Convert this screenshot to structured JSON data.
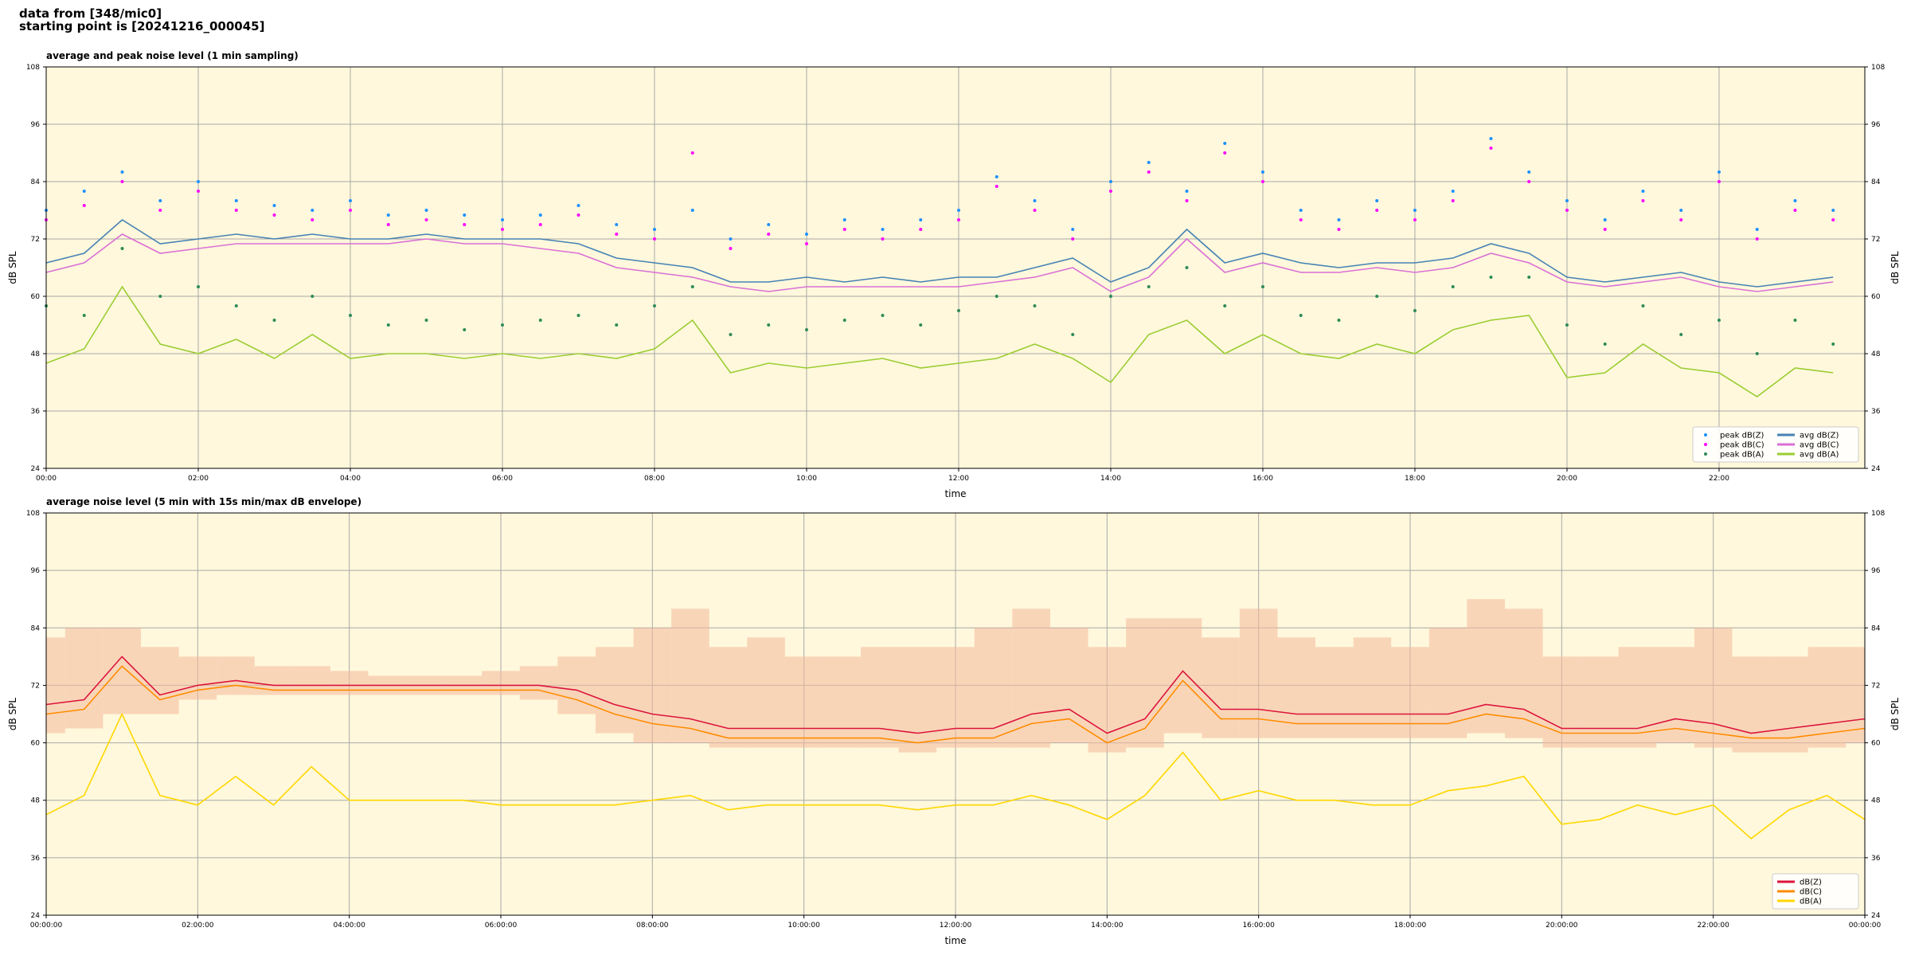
{
  "header": {
    "source": "data from [348/mic0]",
    "start": "starting point is [20241216_000045]"
  },
  "chart_data": [
    {
      "type": "line",
      "title": "average and peak noise level (1 min sampling)",
      "xlabel": "time",
      "ylabel": "dB SPL",
      "xlim": [
        0,
        1435
      ],
      "ylim": [
        24,
        108
      ],
      "yticks": [
        24,
        36,
        48,
        60,
        72,
        84,
        96,
        108
      ],
      "xticks": [
        {
          "value": 0,
          "label": "00:00"
        },
        {
          "value": 120,
          "label": "02:00"
        },
        {
          "value": 240,
          "label": "04:00"
        },
        {
          "value": 360,
          "label": "06:00"
        },
        {
          "value": 480,
          "label": "08:00"
        },
        {
          "value": 600,
          "label": "10:00"
        },
        {
          "value": 720,
          "label": "12:00"
        },
        {
          "value": 840,
          "label": "14:00"
        },
        {
          "value": 960,
          "label": "16:00"
        },
        {
          "value": 1080,
          "label": "18:00"
        },
        {
          "value": 1200,
          "label": "20:00"
        },
        {
          "value": 1320,
          "label": "22:00"
        }
      ],
      "grid": true,
      "legend": "lower right",
      "background": "#fff8dc",
      "x": [
        0,
        30,
        60,
        90,
        120,
        150,
        180,
        210,
        240,
        270,
        300,
        330,
        360,
        390,
        420,
        450,
        480,
        510,
        540,
        570,
        600,
        630,
        660,
        690,
        720,
        750,
        780,
        810,
        840,
        870,
        900,
        930,
        960,
        990,
        1020,
        1050,
        1080,
        1110,
        1140,
        1170,
        1200,
        1230,
        1260,
        1290,
        1320,
        1350,
        1380,
        1410
      ],
      "series": [
        {
          "name": "peak dB(Z)",
          "kind": "scatter",
          "color": "#1e90ff",
          "values": [
            78,
            82,
            86,
            80,
            84,
            80,
            79,
            78,
            80,
            77,
            78,
            77,
            76,
            77,
            79,
            75,
            74,
            78,
            72,
            75,
            73,
            76,
            74,
            76,
            78,
            85,
            80,
            74,
            84,
            88,
            82,
            92,
            86,
            78,
            76,
            80,
            78,
            82,
            93,
            86,
            80,
            76,
            82,
            78,
            86,
            74,
            80,
            78
          ]
        },
        {
          "name": "peak dB(C)",
          "kind": "scatter",
          "color": "#ff00ff",
          "values": [
            76,
            79,
            84,
            78,
            82,
            78,
            77,
            76,
            78,
            75,
            76,
            75,
            74,
            75,
            77,
            73,
            72,
            90,
            70,
            73,
            71,
            74,
            72,
            74,
            76,
            83,
            78,
            72,
            82,
            86,
            80,
            90,
            84,
            76,
            74,
            78,
            76,
            80,
            91,
            84,
            78,
            74,
            80,
            76,
            84,
            72,
            78,
            76
          ]
        },
        {
          "name": "peak dB(A)",
          "kind": "scatter",
          "color": "#2e8b57",
          "values": [
            58,
            56,
            70,
            60,
            62,
            58,
            55,
            60,
            56,
            54,
            55,
            53,
            54,
            55,
            56,
            54,
            58,
            62,
            52,
            54,
            53,
            55,
            56,
            54,
            57,
            60,
            58,
            52,
            60,
            62,
            66,
            58,
            62,
            56,
            55,
            60,
            57,
            62,
            64,
            64,
            54,
            50,
            58,
            52,
            55,
            48,
            55,
            50
          ]
        },
        {
          "name": "avg dB(Z)",
          "kind": "line",
          "color": "#4682b4",
          "values": [
            67,
            69,
            76,
            71,
            72,
            73,
            72,
            73,
            72,
            72,
            73,
            72,
            72,
            72,
            71,
            68,
            67,
            66,
            63,
            63,
            64,
            63,
            64,
            63,
            64,
            64,
            66,
            68,
            63,
            66,
            74,
            67,
            69,
            67,
            66,
            67,
            67,
            68,
            71,
            69,
            64,
            63,
            64,
            65,
            63,
            62,
            63,
            64
          ]
        },
        {
          "name": "avg dB(C)",
          "kind": "line",
          "color": "#da70d6",
          "values": [
            65,
            67,
            73,
            69,
            70,
            71,
            71,
            71,
            71,
            71,
            72,
            71,
            71,
            70,
            69,
            66,
            65,
            64,
            62,
            61,
            62,
            62,
            62,
            62,
            62,
            63,
            64,
            66,
            61,
            64,
            72,
            65,
            67,
            65,
            65,
            66,
            65,
            66,
            69,
            67,
            63,
            62,
            63,
            64,
            62,
            61,
            62,
            63
          ]
        },
        {
          "name": "avg dB(A)",
          "kind": "line",
          "color": "#9acd32",
          "values": [
            46,
            49,
            62,
            50,
            48,
            51,
            47,
            52,
            47,
            48,
            48,
            47,
            48,
            47,
            48,
            47,
            49,
            55,
            44,
            46,
            45,
            46,
            47,
            45,
            46,
            47,
            50,
            47,
            42,
            52,
            55,
            48,
            52,
            48,
            47,
            50,
            48,
            53,
            55,
            56,
            43,
            44,
            50,
            45,
            44,
            39,
            45,
            44
          ]
        }
      ]
    },
    {
      "type": "line",
      "title": "average noise level (5 min with 15s min/max dB envelope)",
      "xlabel": "time",
      "ylabel": "dB SPL",
      "xlim": [
        0,
        1440
      ],
      "ylim": [
        24,
        108
      ],
      "yticks": [
        24,
        36,
        48,
        60,
        72,
        84,
        96,
        108
      ],
      "xticks": [
        {
          "value": 0,
          "label": "00:00:00"
        },
        {
          "value": 120,
          "label": "02:00:00"
        },
        {
          "value": 240,
          "label": "04:00:00"
        },
        {
          "value": 360,
          "label": "06:00:00"
        },
        {
          "value": 480,
          "label": "08:00:00"
        },
        {
          "value": 600,
          "label": "10:00:00"
        },
        {
          "value": 720,
          "label": "12:00:00"
        },
        {
          "value": 840,
          "label": "14:00:00"
        },
        {
          "value": 960,
          "label": "16:00:00"
        },
        {
          "value": 1080,
          "label": "18:00:00"
        },
        {
          "value": 1200,
          "label": "20:00:00"
        },
        {
          "value": 1320,
          "label": "22:00:00"
        },
        {
          "value": 1440,
          "label": "00:00:00"
        }
      ],
      "grid": true,
      "legend": "lower right",
      "background": "#fff8dc",
      "x": [
        0,
        30,
        60,
        90,
        120,
        150,
        180,
        210,
        240,
        270,
        300,
        330,
        360,
        390,
        420,
        450,
        480,
        510,
        540,
        570,
        600,
        630,
        660,
        690,
        720,
        750,
        780,
        810,
        840,
        870,
        900,
        930,
        960,
        990,
        1020,
        1050,
        1080,
        1110,
        1140,
        1170,
        1200,
        1230,
        1260,
        1290,
        1320,
        1350,
        1380,
        1410,
        1440
      ],
      "envelope": {
        "color": "#f4b89a",
        "upper": [
          82,
          84,
          84,
          80,
          78,
          78,
          76,
          76,
          75,
          74,
          74,
          74,
          75,
          76,
          78,
          80,
          84,
          88,
          80,
          82,
          78,
          78,
          80,
          80,
          80,
          84,
          88,
          84,
          80,
          86,
          86,
          82,
          88,
          82,
          80,
          82,
          80,
          84,
          90,
          88,
          78,
          78,
          80,
          80,
          84,
          78,
          78,
          80,
          80
        ],
        "lower": [
          62,
          63,
          66,
          66,
          69,
          70,
          70,
          70,
          70,
          70,
          70,
          70,
          70,
          69,
          66,
          62,
          60,
          60,
          59,
          59,
          59,
          59,
          59,
          58,
          59,
          59,
          59,
          60,
          58,
          59,
          62,
          61,
          61,
          61,
          61,
          61,
          61,
          61,
          62,
          61,
          59,
          59,
          59,
          60,
          59,
          58,
          58,
          59,
          60
        ]
      },
      "series": [
        {
          "name": "dB(Z)",
          "kind": "line",
          "color": "#dc143c",
          "values": [
            68,
            69,
            78,
            70,
            72,
            73,
            72,
            72,
            72,
            72,
            72,
            72,
            72,
            72,
            71,
            68,
            66,
            65,
            63,
            63,
            63,
            63,
            63,
            62,
            63,
            63,
            66,
            67,
            62,
            65,
            75,
            67,
            67,
            66,
            66,
            66,
            66,
            66,
            68,
            67,
            63,
            63,
            63,
            65,
            64,
            62,
            63,
            64,
            65
          ]
        },
        {
          "name": "dB(C)",
          "kind": "line",
          "color": "#ff8c00",
          "values": [
            66,
            67,
            76,
            69,
            71,
            72,
            71,
            71,
            71,
            71,
            71,
            71,
            71,
            71,
            69,
            66,
            64,
            63,
            61,
            61,
            61,
            61,
            61,
            60,
            61,
            61,
            64,
            65,
            60,
            63,
            73,
            65,
            65,
            64,
            64,
            64,
            64,
            64,
            66,
            65,
            62,
            62,
            62,
            63,
            62,
            61,
            61,
            62,
            63
          ]
        },
        {
          "name": "dB(A)",
          "kind": "line",
          "color": "#ffd700",
          "values": [
            45,
            49,
            66,
            49,
            47,
            53,
            47,
            55,
            48,
            48,
            48,
            48,
            47,
            47,
            47,
            47,
            48,
            49,
            46,
            47,
            47,
            47,
            47,
            46,
            47,
            47,
            49,
            47,
            44,
            49,
            58,
            48,
            50,
            48,
            48,
            47,
            47,
            50,
            51,
            53,
            43,
            44,
            47,
            45,
            47,
            40,
            46,
            49,
            44
          ]
        }
      ]
    }
  ]
}
